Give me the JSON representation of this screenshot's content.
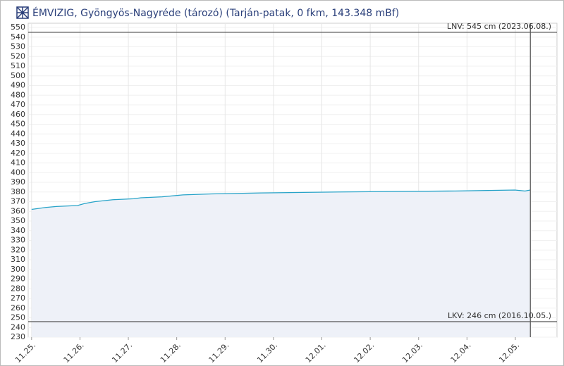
{
  "chart_data": {
    "type": "area",
    "title": "ÉMVIZIG, Gyöngyös-Nagyréde (tározó) (Tarján-patak, 0 fkm, 143.348 mBf)",
    "x": [
      0,
      0.29,
      0.51,
      0.95,
      1.09,
      1.31,
      1.68,
      2.11,
      2.26,
      2.7,
      3.13,
      3.72,
      4.74,
      6.34,
      8.75,
      9.99,
      10.2,
      10.31
    ],
    "series": [
      {
        "color": "#27a3c8",
        "values": [
          362,
          364,
          365,
          366,
          368,
          370,
          372,
          373,
          374,
          375,
          377,
          378,
          379,
          380,
          381,
          382,
          381,
          382
        ]
      }
    ],
    "xlim": [
      -0.07,
      10.86
    ],
    "xticks": [
      {
        "value": 0,
        "label": "11.25."
      },
      {
        "value": 1,
        "label": "11.26."
      },
      {
        "value": 2,
        "label": "11.27."
      },
      {
        "value": 3,
        "label": "11.28."
      },
      {
        "value": 4,
        "label": "11.29."
      },
      {
        "value": 5,
        "label": "11.30."
      },
      {
        "value": 6,
        "label": "12.01."
      },
      {
        "value": 7,
        "label": "12.02."
      },
      {
        "value": 8,
        "label": "12.03."
      },
      {
        "value": 9,
        "label": "12.04."
      },
      {
        "value": 10,
        "label": "12.05."
      }
    ],
    "ylim": [
      230,
      550
    ],
    "yticks": [
      230,
      240,
      250,
      260,
      270,
      280,
      290,
      300,
      310,
      320,
      330,
      340,
      350,
      360,
      370,
      380,
      390,
      400,
      410,
      420,
      430,
      440,
      450,
      460,
      470,
      480,
      490,
      500,
      510,
      520,
      530,
      540,
      550
    ],
    "thresholds": [
      {
        "value": 545,
        "label": "LNV: 545 cm (2023.06.08.)"
      },
      {
        "value": 246,
        "label": "LKV: 246 cm (2016.10.05.)"
      }
    ],
    "grid": true
  }
}
